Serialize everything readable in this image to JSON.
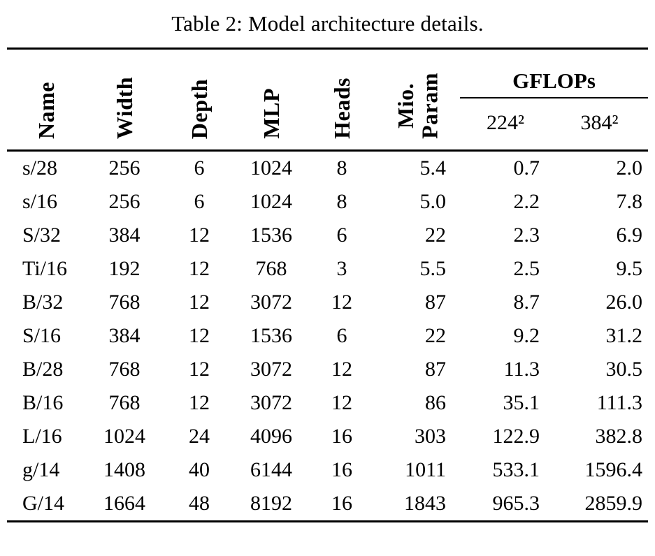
{
  "title": "Table 2: Model architecture details.",
  "colors": {
    "text": "#000000",
    "background": "#ffffff",
    "rule": "#000000"
  },
  "table": {
    "rotated_headers": [
      "Name",
      "Width",
      "Depth",
      "MLP",
      "Heads",
      "Mio.\nParam"
    ],
    "gflops": {
      "label": "GFLOPs",
      "subcolumns": [
        "224²",
        "384²"
      ]
    },
    "col_keys": [
      "name",
      "width",
      "depth",
      "mlp",
      "heads",
      "mio-param",
      "gflops-224",
      "gflops-384"
    ],
    "rows": [
      [
        "s/28",
        "256",
        "6",
        "1024",
        "8",
        "5.4",
        "0.7",
        "2.0"
      ],
      [
        "s/16",
        "256",
        "6",
        "1024",
        "8",
        "5.0",
        "2.2",
        "7.8"
      ],
      [
        "S/32",
        "384",
        "12",
        "1536",
        "6",
        "22",
        "2.3",
        "6.9"
      ],
      [
        "Ti/16",
        "192",
        "12",
        "768",
        "3",
        "5.5",
        "2.5",
        "9.5"
      ],
      [
        "B/32",
        "768",
        "12",
        "3072",
        "12",
        "87",
        "8.7",
        "26.0"
      ],
      [
        "S/16",
        "384",
        "12",
        "1536",
        "6",
        "22",
        "9.2",
        "31.2"
      ],
      [
        "B/28",
        "768",
        "12",
        "3072",
        "12",
        "87",
        "11.3",
        "30.5"
      ],
      [
        "B/16",
        "768",
        "12",
        "3072",
        "12",
        "86",
        "35.1",
        "111.3"
      ],
      [
        "L/16",
        "1024",
        "24",
        "4096",
        "16",
        "303",
        "122.9",
        "382.8"
      ],
      [
        "g/14",
        "1408",
        "40",
        "6144",
        "16",
        "1011",
        "533.1",
        "1596.4"
      ],
      [
        "G/14",
        "1664",
        "48",
        "8192",
        "16",
        "1843",
        "965.3",
        "2859.9"
      ]
    ]
  }
}
